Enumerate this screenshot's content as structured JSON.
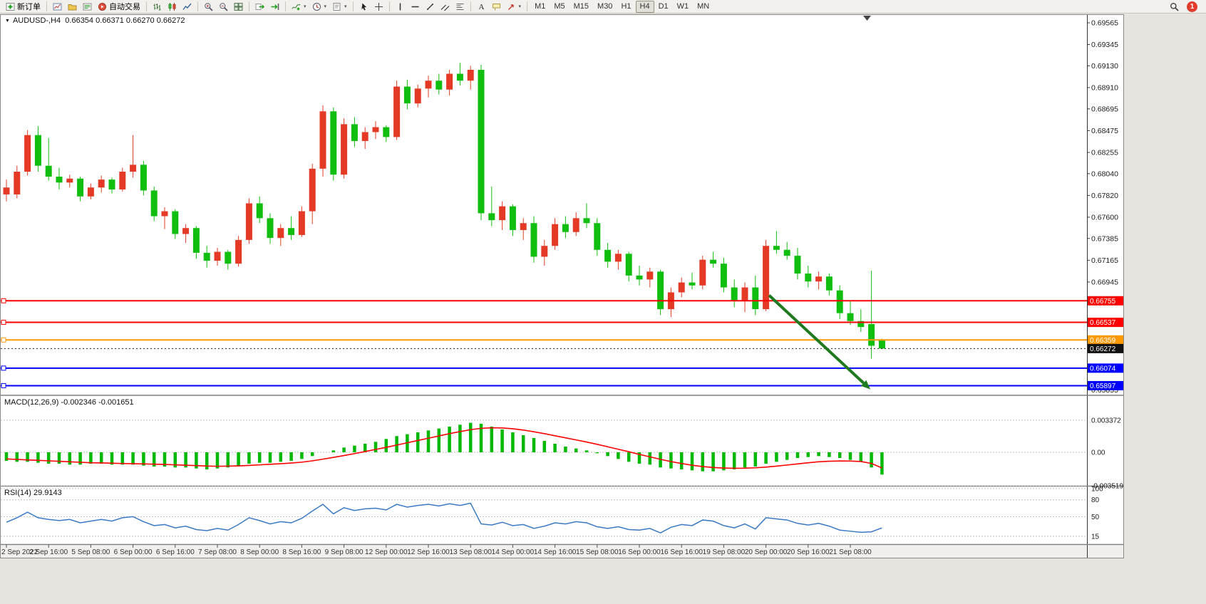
{
  "toolbar": {
    "groups": [
      [
        {
          "name": "new-order",
          "icon": "new-order",
          "label": "新订单"
        }
      ],
      [
        {
          "name": "chart-window",
          "icon": "chart-window"
        },
        {
          "name": "profiles",
          "icon": "profiles"
        },
        {
          "name": "data-window",
          "icon": "data-window"
        },
        {
          "name": "auto-trading",
          "icon": "auto-trading",
          "label": "自动交易"
        }
      ],
      [
        {
          "name": "bar-chart",
          "icon": "bar-chart"
        },
        {
          "name": "candle-chart",
          "icon": "candle-chart"
        },
        {
          "name": "line-chart",
          "icon": "line-chart"
        }
      ],
      [
        {
          "name": "zoom-in",
          "icon": "zoom-in"
        },
        {
          "name": "zoom-out",
          "icon": "zoom-out"
        },
        {
          "name": "tile-windows",
          "icon": "tile-windows"
        }
      ],
      [
        {
          "name": "auto-scroll",
          "icon": "auto-scroll"
        },
        {
          "name": "chart-shift",
          "icon": "chart-shift"
        }
      ],
      [
        {
          "name": "indicators",
          "icon": "indicators",
          "dropdown": true
        },
        {
          "name": "periods",
          "icon": "periods",
          "dropdown": true
        },
        {
          "name": "templates",
          "icon": "templates",
          "dropdown": true
        }
      ],
      [
        {
          "name": "cursor",
          "icon": "cursor"
        },
        {
          "name": "crosshair",
          "icon": "crosshair"
        }
      ],
      [
        {
          "name": "vertical-line",
          "icon": "vertical-line"
        },
        {
          "name": "horizontal-line",
          "icon": "horizontal-line"
        },
        {
          "name": "trend-line",
          "icon": "trend-line"
        },
        {
          "name": "equidistant-channel",
          "icon": "channel"
        },
        {
          "name": "fibonacci",
          "icon": "fibonacci"
        }
      ],
      [
        {
          "name": "text",
          "icon": "text"
        },
        {
          "name": "text-label",
          "icon": "text-label"
        },
        {
          "name": "arrows",
          "icon": "arrows",
          "dropdown": true
        }
      ]
    ],
    "timeframes": [
      "M1",
      "M5",
      "M15",
      "M30",
      "H1",
      "H4",
      "D1",
      "W1",
      "MN"
    ],
    "active_timeframe": "H4",
    "notification_count": "1"
  },
  "chart": {
    "symbol_line": "AUDUSD-,H4  0.66354 0.66371 0.66270 0.66272",
    "macd_label": "MACD(12,26,9) -0.002346 -0.001651",
    "rsi_label": "RSI(14) 29.9143"
  },
  "colors": {
    "candle_red": "#E43A25",
    "candle_green": "#0FBE0F",
    "macd_green": "#00B800",
    "macd_signal_red": "#FF0000",
    "rsi_blue": "#3A79C3",
    "arrow_green": "#1F7A1F",
    "hline_red": "#FF0000",
    "hline_orange": "#FF9900",
    "hline_blue": "#0000FF",
    "current_price_black": "#111111"
  },
  "chart_data": {
    "type": "candlestick+indicators",
    "symbol": "AUDUSD-",
    "timeframe": "H4",
    "ohlc_display": {
      "open": "0.66354",
      "high": "0.66371",
      "low": "0.66270",
      "close": "0.66272"
    },
    "price_axis": [
      {
        "label": "0.69565",
        "value": 0.69565
      },
      {
        "label": "0.69345",
        "value": 0.69345
      },
      {
        "label": "0.69130",
        "value": 0.6913
      },
      {
        "label": "0.68910",
        "value": 0.6891
      },
      {
        "label": "0.68695",
        "value": 0.68695
      },
      {
        "label": "0.68475",
        "value": 0.68475
      },
      {
        "label": "0.68255",
        "value": 0.68255
      },
      {
        "label": "0.68040",
        "value": 0.6804
      },
      {
        "label": "0.67820",
        "value": 0.6782
      },
      {
        "label": "0.67600",
        "value": 0.676
      },
      {
        "label": "0.67385",
        "value": 0.67385
      },
      {
        "label": "0.67165",
        "value": 0.67165
      },
      {
        "label": "0.66945",
        "value": 0.66945
      },
      {
        "label": "0.65855",
        "value": 0.65855
      }
    ],
    "hlines": [
      {
        "price": 0.66755,
        "label": "0.66755",
        "color": "#FF0000"
      },
      {
        "price": 0.66537,
        "label": "0.66537",
        "color": "#FF0000"
      },
      {
        "price": 0.66359,
        "label": "0.66359",
        "color": "#FF9900"
      },
      {
        "price": 0.66074,
        "label": "0.66074",
        "color": "#0000FF"
      },
      {
        "price": 0.65897,
        "label": "0.65897",
        "color": "#0000FF"
      }
    ],
    "current_price": {
      "value": 0.66272,
      "label": "0.66272"
    },
    "candles": [
      [
        0.679,
        0.6798,
        0.6776,
        0.6783,
        "r"
      ],
      [
        0.6783,
        0.6812,
        0.6779,
        0.6806,
        "r"
      ],
      [
        0.6806,
        0.6848,
        0.6802,
        0.6843,
        "r"
      ],
      [
        0.6843,
        0.6852,
        0.6806,
        0.6812,
        "g"
      ],
      [
        0.6812,
        0.684,
        0.6797,
        0.6801,
        "g"
      ],
      [
        0.6801,
        0.681,
        0.6788,
        0.6795,
        "g"
      ],
      [
        0.6795,
        0.6803,
        0.679,
        0.6799,
        "r"
      ],
      [
        0.6799,
        0.6801,
        0.6776,
        0.6781,
        "g"
      ],
      [
        0.6781,
        0.6794,
        0.6778,
        0.679,
        "r"
      ],
      [
        0.679,
        0.6802,
        0.6785,
        0.6798,
        "r"
      ],
      [
        0.6798,
        0.68,
        0.6784,
        0.6788,
        "g"
      ],
      [
        0.6788,
        0.681,
        0.6786,
        0.6806,
        "r"
      ],
      [
        0.6806,
        0.6843,
        0.68,
        0.6813,
        "r"
      ],
      [
        0.6813,
        0.6817,
        0.6782,
        0.6787,
        "g"
      ],
      [
        0.6787,
        0.6791,
        0.6756,
        0.6761,
        "g"
      ],
      [
        0.6761,
        0.677,
        0.6748,
        0.6766,
        "r"
      ],
      [
        0.6766,
        0.6768,
        0.6738,
        0.6743,
        "g"
      ],
      [
        0.6743,
        0.6753,
        0.6734,
        0.6749,
        "r"
      ],
      [
        0.6749,
        0.6751,
        0.6718,
        0.6724,
        "g"
      ],
      [
        0.6724,
        0.6731,
        0.6709,
        0.6716,
        "g"
      ],
      [
        0.6716,
        0.6729,
        0.6711,
        0.6725,
        "r"
      ],
      [
        0.6725,
        0.6727,
        0.6707,
        0.6713,
        "g"
      ],
      [
        0.6713,
        0.6741,
        0.671,
        0.6737,
        "r"
      ],
      [
        0.6737,
        0.6779,
        0.6733,
        0.6774,
        "r"
      ],
      [
        0.6774,
        0.6781,
        0.6754,
        0.6759,
        "g"
      ],
      [
        0.6759,
        0.6764,
        0.6733,
        0.6739,
        "g"
      ],
      [
        0.6739,
        0.6753,
        0.6731,
        0.6749,
        "r"
      ],
      [
        0.6749,
        0.6761,
        0.6737,
        0.6742,
        "g"
      ],
      [
        0.6742,
        0.6771,
        0.674,
        0.6766,
        "r"
      ],
      [
        0.6766,
        0.6814,
        0.6753,
        0.6809,
        "r"
      ],
      [
        0.6809,
        0.6873,
        0.6801,
        0.6867,
        "r"
      ],
      [
        0.6867,
        0.6871,
        0.6797,
        0.6803,
        "g"
      ],
      [
        0.6803,
        0.686,
        0.6799,
        0.6854,
        "r"
      ],
      [
        0.6854,
        0.6861,
        0.6831,
        0.6837,
        "g"
      ],
      [
        0.6837,
        0.6851,
        0.6829,
        0.6846,
        "r"
      ],
      [
        0.6846,
        0.6857,
        0.6839,
        0.6851,
        "r"
      ],
      [
        0.6851,
        0.6853,
        0.6836,
        0.6841,
        "g"
      ],
      [
        0.6841,
        0.6898,
        0.6838,
        0.6892,
        "r"
      ],
      [
        0.6892,
        0.6899,
        0.6869,
        0.6875,
        "g"
      ],
      [
        0.6875,
        0.6894,
        0.6871,
        0.689,
        "r"
      ],
      [
        0.689,
        0.6903,
        0.6881,
        0.6898,
        "r"
      ],
      [
        0.6898,
        0.6905,
        0.6884,
        0.6889,
        "g"
      ],
      [
        0.6889,
        0.6909,
        0.6883,
        0.6905,
        "r"
      ],
      [
        0.6905,
        0.6916,
        0.6893,
        0.6898,
        "g"
      ],
      [
        0.6898,
        0.6913,
        0.6889,
        0.6909,
        "r"
      ],
      [
        0.6909,
        0.6914,
        0.6757,
        0.6764,
        "g"
      ],
      [
        0.6764,
        0.6791,
        0.6751,
        0.6757,
        "g"
      ],
      [
        0.6757,
        0.6776,
        0.6747,
        0.6771,
        "r"
      ],
      [
        0.6771,
        0.6773,
        0.6741,
        0.6747,
        "g"
      ],
      [
        0.6747,
        0.6759,
        0.6737,
        0.6754,
        "r"
      ],
      [
        0.6754,
        0.6761,
        0.6714,
        0.672,
        "g"
      ],
      [
        0.672,
        0.6737,
        0.6711,
        0.6731,
        "r"
      ],
      [
        0.6731,
        0.6759,
        0.6727,
        0.6753,
        "r"
      ],
      [
        0.6753,
        0.6761,
        0.6739,
        0.6745,
        "g"
      ],
      [
        0.6745,
        0.6765,
        0.6741,
        0.6759,
        "r"
      ],
      [
        0.6759,
        0.6774,
        0.6749,
        0.6754,
        "g"
      ],
      [
        0.6754,
        0.6759,
        0.6721,
        0.6727,
        "g"
      ],
      [
        0.6727,
        0.6734,
        0.6709,
        0.6715,
        "g"
      ],
      [
        0.6715,
        0.6727,
        0.6707,
        0.6723,
        "r"
      ],
      [
        0.6723,
        0.6725,
        0.6695,
        0.6701,
        "g"
      ],
      [
        0.6701,
        0.6711,
        0.6691,
        0.6697,
        "g"
      ],
      [
        0.6697,
        0.6709,
        0.6689,
        0.6705,
        "r"
      ],
      [
        0.6705,
        0.6707,
        0.6661,
        0.6667,
        "g"
      ],
      [
        0.6667,
        0.6689,
        0.6659,
        0.6684,
        "r"
      ],
      [
        0.6684,
        0.6699,
        0.6679,
        0.6694,
        "r"
      ],
      [
        0.6694,
        0.6704,
        0.6687,
        0.6691,
        "g"
      ],
      [
        0.6691,
        0.6721,
        0.6687,
        0.6717,
        "r"
      ],
      [
        0.6717,
        0.6725,
        0.6709,
        0.6713,
        "g"
      ],
      [
        0.6713,
        0.6719,
        0.6684,
        0.6689,
        "g"
      ],
      [
        0.6689,
        0.6697,
        0.6669,
        0.6675,
        "g"
      ],
      [
        0.6675,
        0.6694,
        0.6664,
        0.6689,
        "r"
      ],
      [
        0.6689,
        0.6701,
        0.6661,
        0.6667,
        "g"
      ],
      [
        0.6667,
        0.6737,
        0.6665,
        0.6731,
        "r"
      ],
      [
        0.6731,
        0.6746,
        0.6723,
        0.6727,
        "g"
      ],
      [
        0.6727,
        0.6735,
        0.6717,
        0.6721,
        "g"
      ],
      [
        0.6721,
        0.6729,
        0.6697,
        0.6703,
        "g"
      ],
      [
        0.6703,
        0.6711,
        0.6689,
        0.6695,
        "g"
      ],
      [
        0.6695,
        0.6705,
        0.6687,
        0.67,
        "r"
      ],
      [
        0.67,
        0.6703,
        0.6681,
        0.6686,
        "g"
      ],
      [
        0.6686,
        0.6691,
        0.6657,
        0.6663,
        "g"
      ],
      [
        0.6663,
        0.6675,
        0.6651,
        0.6655,
        "g"
      ],
      [
        0.6655,
        0.6667,
        0.6644,
        0.6649,
        "g"
      ],
      [
        0.6652,
        0.6706,
        0.6617,
        0.663,
        "g"
      ],
      [
        0.66354,
        0.66371,
        0.6627,
        0.66272,
        "g"
      ]
    ],
    "time_labels": [
      "2 Sep 2022",
      "2 Sep 16:00",
      "5 Sep 08:00",
      "6 Sep 00:00",
      "6 Sep 16:00",
      "7 Sep 08:00",
      "8 Sep 00:00",
      "8 Sep 16:00",
      "9 Sep 08:00",
      "12 Sep 00:00",
      "12 Sep 16:00",
      "13 Sep 08:00",
      "14 Sep 00:00",
      "14 Sep 16:00",
      "15 Sep 08:00",
      "16 Sep 00:00",
      "16 Sep 16:00",
      "19 Sep 08:00",
      "20 Sep 00:00",
      "20 Sep 16:00",
      "21 Sep 08:00"
    ],
    "macd": {
      "name": "MACD(12,26,9)",
      "value": -0.002346,
      "signal_value": -0.001651,
      "axis": [
        {
          "value": 0.003372,
          "label": "0.003372"
        },
        {
          "value": 0,
          "label": "0.00"
        },
        {
          "value": -0.003519,
          "label": "-0.003519"
        }
      ],
      "histogram": [
        -0.0009,
        -0.001,
        -0.001,
        -0.0011,
        -0.0012,
        -0.0012,
        -0.0013,
        -0.0013,
        -0.0012,
        -0.0012,
        -0.0013,
        -0.0013,
        -0.0013,
        -0.0014,
        -0.0015,
        -0.0015,
        -0.0016,
        -0.0016,
        -0.0017,
        -0.0018,
        -0.0017,
        -0.0016,
        -0.0014,
        -0.0012,
        -0.0011,
        -0.0011,
        -0.001,
        -0.0009,
        -0.0007,
        -0.0004,
        0.0,
        0.0002,
        0.0005,
        0.0007,
        0.0009,
        0.0011,
        0.0014,
        0.0017,
        0.0019,
        0.0021,
        0.0023,
        0.0025,
        0.0027,
        0.0029,
        0.0031,
        0.003,
        0.0027,
        0.0024,
        0.0021,
        0.0018,
        0.0015,
        0.0012,
        0.0009,
        0.0006,
        0.0004,
        0.0002,
        -0.0001,
        -0.0004,
        -0.0007,
        -0.001,
        -0.0012,
        -0.0013,
        -0.0016,
        -0.0017,
        -0.0018,
        -0.0019,
        -0.002,
        -0.002,
        -0.0019,
        -0.0018,
        -0.0016,
        -0.0015,
        -0.0012,
        -0.001,
        -0.0008,
        -0.0006,
        -0.0005,
        -0.0004,
        -0.0005,
        -0.0006,
        -0.0008,
        -0.001,
        -0.0016,
        -0.002346
      ],
      "signal": [
        -0.0007,
        -0.00075,
        -0.0008,
        -0.00085,
        -0.0009,
        -0.00095,
        -0.001,
        -0.00105,
        -0.0011,
        -0.00112,
        -0.00115,
        -0.00118,
        -0.0012,
        -0.00122,
        -0.00125,
        -0.00128,
        -0.00132,
        -0.00136,
        -0.0014,
        -0.00145,
        -0.00147,
        -0.00146,
        -0.00143,
        -0.00138,
        -0.00132,
        -0.00126,
        -0.0012,
        -0.00113,
        -0.00104,
        -0.0009,
        -0.00072,
        -0.00054,
        -0.00034,
        -0.00014,
        8e-05,
        0.0003,
        0.00052,
        0.00076,
        0.001,
        0.00124,
        0.00148,
        0.00172,
        0.00196,
        0.00218,
        0.00238,
        0.00252,
        0.00258,
        0.00256,
        0.00248,
        0.00234,
        0.00216,
        0.00196,
        0.00174,
        0.00152,
        0.0013,
        0.00108,
        0.00084,
        0.00058,
        0.00032,
        6e-05,
        -0.00022,
        -0.00048,
        -0.00074,
        -0.00098,
        -0.00118,
        -0.00136,
        -0.0015,
        -0.0016,
        -0.00166,
        -0.00168,
        -0.00167,
        -0.00163,
        -0.00156,
        -0.00146,
        -0.00134,
        -0.00122,
        -0.0011,
        -0.001,
        -0.00094,
        -0.00091,
        -0.00092,
        -0.00097,
        -0.00117,
        -0.001651
      ]
    },
    "rsi": {
      "name": "RSI(14)",
      "value": 29.9143,
      "levels": [
        100,
        80,
        50,
        15
      ],
      "values": [
        40,
        48,
        58,
        48,
        45,
        43,
        45,
        39,
        42,
        45,
        42,
        48,
        50,
        41,
        34,
        36,
        30,
        33,
        27,
        25,
        29,
        26,
        36,
        48,
        43,
        37,
        41,
        39,
        47,
        60,
        72,
        55,
        66,
        61,
        64,
        65,
        62,
        72,
        67,
        70,
        72,
        69,
        73,
        70,
        74,
        37,
        35,
        40,
        34,
        36,
        29,
        33,
        39,
        37,
        41,
        39,
        32,
        29,
        32,
        27,
        26,
        29,
        21,
        31,
        36,
        34,
        44,
        42,
        34,
        30,
        37,
        28,
        48,
        46,
        44,
        38,
        35,
        38,
        33,
        26,
        24,
        22,
        23,
        29.9143
      ]
    },
    "trend_arrow": {
      "color": "#1F7A1F",
      "from_bar": 72.3,
      "from_price": 0.6681,
      "to_bar": 81.9,
      "to_price": 0.6586
    }
  }
}
